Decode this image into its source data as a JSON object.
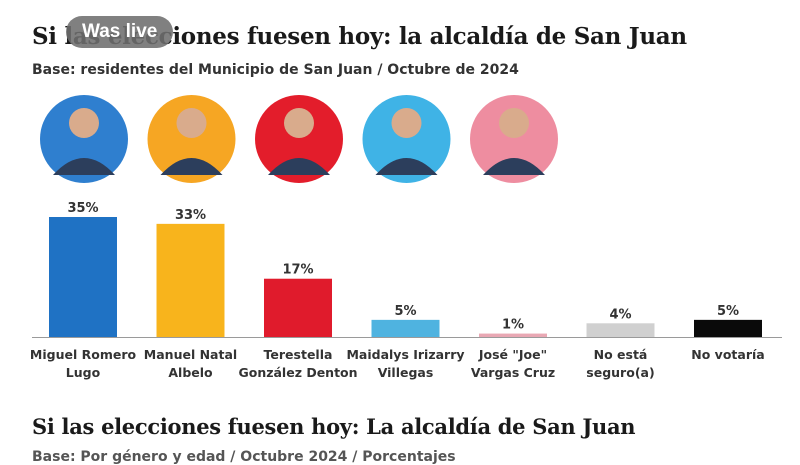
{
  "overlay": {
    "badge_label": "Was live"
  },
  "chart_data": {
    "type": "bar",
    "title": "Si las elecciones fuesen hoy: la alcaldía de San Juan",
    "subtitle": "Base: residentes del Municipio de San Juan / Octubre de 2024",
    "categories": [
      [
        "Miguel Romero",
        "Lugo"
      ],
      [
        "Manuel Natal",
        "Albelo"
      ],
      [
        "Terestella",
        "González Denton"
      ],
      [
        "Maidalys Irizarry",
        "Villegas"
      ],
      [
        "José \"Joe\"",
        "Vargas Cruz"
      ],
      [
        "No está",
        "seguro(a)"
      ],
      [
        "No votaría"
      ]
    ],
    "values": [
      35,
      33,
      17,
      5,
      1,
      4,
      5
    ],
    "value_labels": [
      "35%",
      "33%",
      "17%",
      "5%",
      "1%",
      "4%",
      "5%"
    ],
    "colors": [
      "#1f72c4",
      "#f8b41c",
      "#e01b2c",
      "#4fb3e0",
      "#e9a8b4",
      "#d0d0d0",
      "#0a0a0a"
    ],
    "avatar_colors": [
      "#2f7fcf",
      "#f6a623",
      "#e31d2b",
      "#3fb3e6",
      "#ee8da0"
    ],
    "unit": "%",
    "ylim": [
      0,
      35
    ],
    "legend": "none",
    "grid": false
  },
  "next_section": {
    "title": "Si las elecciones fuesen hoy: La alcaldía de San Juan",
    "subtitle": "Base: Por género y edad / Octubre 2024 / Porcentajes"
  }
}
